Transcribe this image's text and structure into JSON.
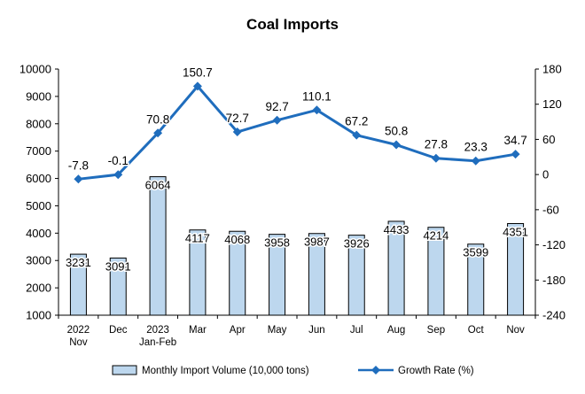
{
  "chart_data": {
    "type": "bar",
    "title": "Coal Imports",
    "categories": [
      "2022\nNov",
      "Dec",
      "2023\nJan-Feb",
      "Mar",
      "Apr",
      "May",
      "Jun",
      "Jul",
      "Aug",
      "Sep",
      "Oct",
      "Nov"
    ],
    "series": [
      {
        "name": "Monthly Import Volume (10,000 tons)",
        "type": "bar",
        "axis": "left",
        "values": [
          3231,
          3091,
          6064,
          4117,
          4068,
          3958,
          3987,
          3926,
          4433,
          4214,
          3599,
          4351
        ],
        "labels": [
          "3231",
          "3091",
          "6064",
          "4117",
          "4068",
          "3958",
          "3987",
          "3926",
          "4433",
          "4214",
          "3599",
          "4351"
        ]
      },
      {
        "name": "Growth Rate (%)",
        "type": "line",
        "axis": "right",
        "values": [
          -7.8,
          -0.1,
          70.8,
          150.7,
          72.7,
          92.7,
          110.1,
          67.2,
          50.8,
          27.8,
          23.3,
          34.7
        ],
        "labels": [
          "-7.8",
          "-0.1",
          "70.8",
          "150.7",
          "72.7",
          "92.7",
          "110.1",
          "67.2",
          "50.8",
          "27.8",
          "23.3",
          "34.7"
        ]
      }
    ],
    "y_left": {
      "min": 1000,
      "max": 10000,
      "ticks": [
        "10000",
        "9000",
        "8000",
        "7000",
        "6000",
        "5000",
        "4000",
        "3000",
        "2000",
        "1000"
      ]
    },
    "y_right": {
      "min": -240,
      "max": 180,
      "ticks": [
        "180",
        "120",
        "60",
        "0",
        "-60",
        "-120",
        "-180",
        "-240"
      ]
    },
    "grid": false,
    "legend_position": "bottom",
    "colors": {
      "bar_fill": "#bdd7ee",
      "bar_stroke": "#000000",
      "line": "#1f6dbd",
      "axis": "#000000"
    }
  }
}
